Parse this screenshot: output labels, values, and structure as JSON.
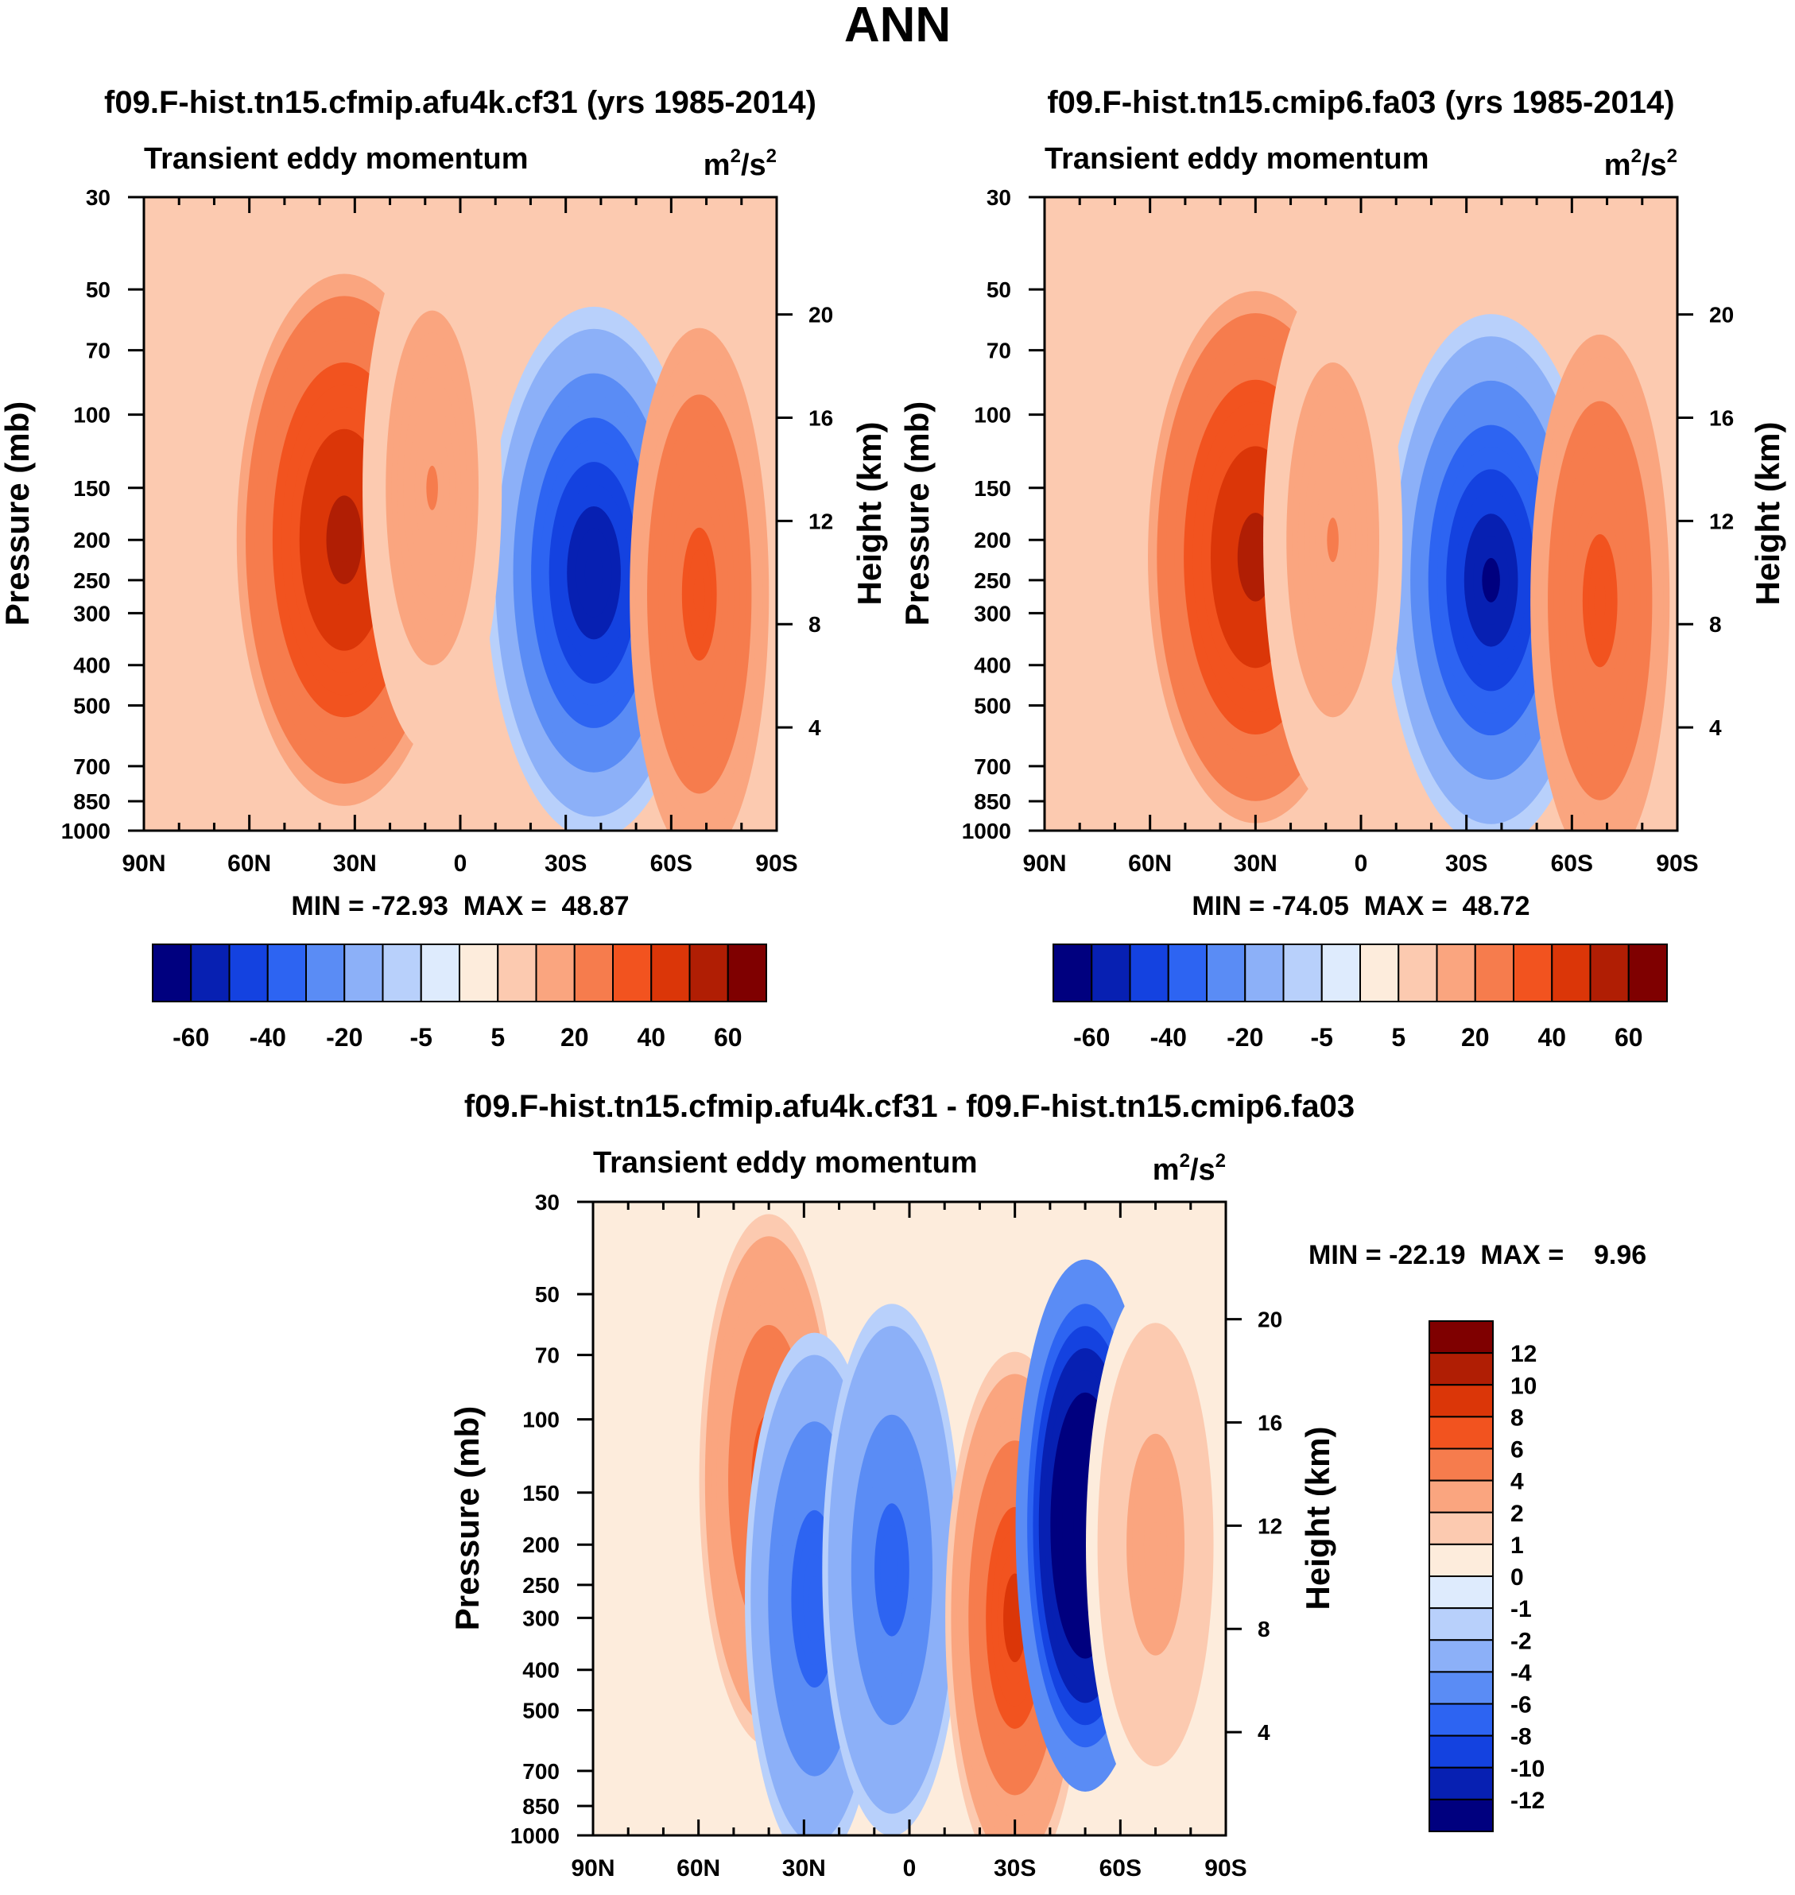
{
  "figure_title": "ANN",
  "chart_data": [
    {
      "type": "heatmap",
      "panel": "test",
      "title": "f09.F-hist.tn15.cfmip.afu4k.cf31 (yrs 1985-2014)",
      "variable": "Transient eddy momentum",
      "units_base": "m",
      "units_exp": "2",
      "units_sep": "/s",
      "ylabel": "Pressure (mb)",
      "ylabel_right": "Height (km)",
      "xticks": [
        "90N",
        "60N",
        "30N",
        "0",
        "30S",
        "60S",
        "90S"
      ],
      "yticks": [
        "30",
        "50",
        "70",
        "100",
        "150",
        "200",
        "250",
        "300",
        "400",
        "500",
        "700",
        "850",
        "1000"
      ],
      "yticks_right": [
        "20",
        "16",
        "12",
        "8",
        "4"
      ],
      "min": -72.93,
      "max": 48.87,
      "stats_text": "MIN = -72.93  MAX =  48.87",
      "colorbar_labels": [
        "-60",
        "-40",
        "-20",
        "-5",
        "5",
        "20",
        "40",
        "60"
      ],
      "features": [
        {
          "lat_deg": 33,
          "p_mb": 200,
          "value": 45
        },
        {
          "lat_deg": -38,
          "p_mb": 240,
          "value": -70
        },
        {
          "lat_deg": -68,
          "p_mb": 270,
          "value": 25
        },
        {
          "lat_deg": 8,
          "p_mb": 150,
          "value": 10
        }
      ]
    },
    {
      "type": "heatmap",
      "panel": "control",
      "title": "f09.F-hist.tn15.cmip6.fa03 (yrs 1985-2014)",
      "variable": "Transient eddy momentum",
      "units_base": "m",
      "units_exp": "2",
      "units_sep": "/s",
      "ylabel": "Pressure (mb)",
      "ylabel_right": "Height (km)",
      "xticks": [
        "90N",
        "60N",
        "30N",
        "0",
        "30S",
        "60S",
        "90S"
      ],
      "yticks": [
        "30",
        "50",
        "70",
        "100",
        "150",
        "200",
        "250",
        "300",
        "400",
        "500",
        "700",
        "850",
        "1000"
      ],
      "yticks_right": [
        "20",
        "16",
        "12",
        "8",
        "4"
      ],
      "min": -74.05,
      "max": 48.72,
      "stats_text": "MIN = -74.05  MAX =  48.72",
      "colorbar_labels": [
        "-60",
        "-40",
        "-20",
        "-5",
        "5",
        "20",
        "40",
        "60"
      ],
      "features": [
        {
          "lat_deg": 30,
          "p_mb": 220,
          "value": 45
        },
        {
          "lat_deg": -37,
          "p_mb": 250,
          "value": -72
        },
        {
          "lat_deg": -68,
          "p_mb": 280,
          "value": 25
        },
        {
          "lat_deg": 8,
          "p_mb": 200,
          "value": 10
        }
      ]
    },
    {
      "type": "heatmap",
      "panel": "difference",
      "title": "f09.F-hist.tn15.cfmip.afu4k.cf31 - f09.F-hist.tn15.cmip6.fa03",
      "variable": "Transient eddy momentum",
      "units_base": "m",
      "units_exp": "2",
      "units_sep": "/s",
      "ylabel": "Pressure (mb)",
      "ylabel_right": "Height (km)",
      "xticks": [
        "90N",
        "60N",
        "30N",
        "0",
        "30S",
        "60S",
        "90S"
      ],
      "yticks": [
        "30",
        "50",
        "70",
        "100",
        "150",
        "200",
        "250",
        "300",
        "400",
        "500",
        "700",
        "850",
        "1000"
      ],
      "yticks_right": [
        "20",
        "16",
        "12",
        "8",
        "4"
      ],
      "min": -22.19,
      "max": 9.96,
      "stats_text": "MIN = -22.19  MAX =    9.96",
      "colorbar_labels": [
        "12",
        "10",
        "8",
        "6",
        "4",
        "2",
        "1",
        "0",
        "-1",
        "-2",
        "-4",
        "-6",
        "-8",
        "-10",
        "-12"
      ],
      "features": [
        {
          "lat_deg": 40,
          "p_mb": 140,
          "value": 7
        },
        {
          "lat_deg": 27,
          "p_mb": 270,
          "value": -8
        },
        {
          "lat_deg": 5,
          "p_mb": 230,
          "value": -7
        },
        {
          "lat_deg": -30,
          "p_mb": 300,
          "value": 9
        },
        {
          "lat_deg": -50,
          "p_mb": 180,
          "value": -20
        },
        {
          "lat_deg": -70,
          "p_mb": 200,
          "value": 3
        }
      ]
    }
  ],
  "colors": {
    "main_scale": [
      "#00007f",
      "#0720b2",
      "#1442e0",
      "#2d64f2",
      "#5a8cf5",
      "#8cb0f8",
      "#b8d0fb",
      "#deebfd",
      "#fdecdc",
      "#fccab0",
      "#faa57f",
      "#f67c4d",
      "#f2531f",
      "#db3608",
      "#b01e04",
      "#7f0000"
    ],
    "diff_scale": [
      "#7f0000",
      "#b01e04",
      "#db3608",
      "#f2531f",
      "#f67c4d",
      "#faa57f",
      "#fccab0",
      "#fdecdc",
      "#deebfd",
      "#b8d0fb",
      "#8cb0f8",
      "#5a8cf5",
      "#2d64f2",
      "#1442e0",
      "#0720b2",
      "#00007f"
    ]
  }
}
